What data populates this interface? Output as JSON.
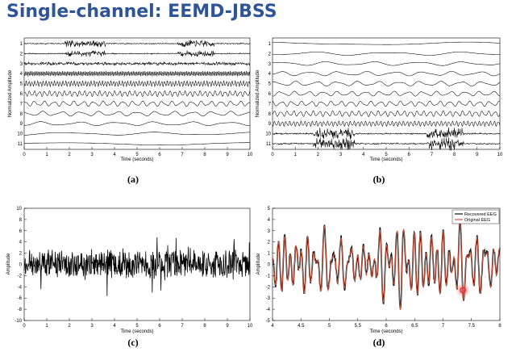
{
  "slide": {
    "title": "Single-channel: EEMD-JBSS"
  },
  "chart_data": [
    {
      "id": "a",
      "type": "line",
      "caption": "(a)",
      "xlabel": "Time (seconds)",
      "ylabel": "Normalized Amplitude",
      "xlim": [
        0,
        10
      ],
      "x_ticks": [
        "0",
        "1",
        "2",
        "3",
        "4",
        "5",
        "6",
        "7",
        "8",
        "9",
        "10"
      ],
      "channels": [
        "1",
        "2",
        "3",
        "4",
        "5",
        "6",
        "7",
        "8",
        "9",
        "10",
        "11"
      ],
      "grid": false,
      "series_desc": [
        {
          "channel": "1",
          "freq_hz": 38,
          "amp": 0.15,
          "bursts": [
            [
              1.8,
              3.6
            ],
            [
              6.8,
              8.4
            ]
          ],
          "burst_amp": 0.9
        },
        {
          "channel": "2",
          "freq_hz": 30,
          "amp": 0.15,
          "bursts": [
            [
              1.8,
              3.6
            ],
            [
              6.8,
              8.4
            ]
          ],
          "burst_amp": 0.8
        },
        {
          "channel": "3",
          "freq_hz": 22,
          "amp": 0.45
        },
        {
          "channel": "4",
          "freq_hz": 14,
          "amp": 0.6
        },
        {
          "channel": "5",
          "freq_hz": 8,
          "amp": 0.65
        },
        {
          "channel": "6",
          "freq_hz": 4.5,
          "amp": 0.65
        },
        {
          "channel": "7",
          "freq_hz": 2.3,
          "amp": 0.6
        },
        {
          "channel": "8",
          "freq_hz": 1.2,
          "amp": 0.55
        },
        {
          "channel": "9",
          "freq_hz": 0.6,
          "amp": 0.45
        },
        {
          "channel": "10",
          "freq_hz": 0.25,
          "amp": 0.35
        },
        {
          "channel": "11",
          "freq_hz": 0.1,
          "amp": 0.3
        }
      ]
    },
    {
      "id": "b",
      "type": "line",
      "caption": "(b)",
      "xlabel": "Time (seconds)",
      "ylabel": "Normalized Amplitude",
      "xlim": [
        0,
        10
      ],
      "x_ticks": [
        "0",
        "1",
        "2",
        "3",
        "4",
        "5",
        "6",
        "7",
        "8",
        "9",
        "10"
      ],
      "channels": [
        "1",
        "2",
        "3",
        "4",
        "5",
        "6",
        "7",
        "8",
        "9",
        "10",
        "11"
      ],
      "grid": false,
      "series_desc": [
        {
          "channel": "1",
          "freq_hz": 0.12,
          "amp": 0.35
        },
        {
          "channel": "2",
          "freq_hz": 0.3,
          "amp": 0.4
        },
        {
          "channel": "3",
          "freq_hz": 0.5,
          "amp": 0.45
        },
        {
          "channel": "4",
          "freq_hz": 0.8,
          "amp": 0.5
        },
        {
          "channel": "5",
          "freq_hz": 1.1,
          "amp": 0.55
        },
        {
          "channel": "6",
          "freq_hz": 1.6,
          "amp": 0.55
        },
        {
          "channel": "7",
          "freq_hz": 2.3,
          "amp": 0.6
        },
        {
          "channel": "8",
          "freq_hz": 3.5,
          "amp": 0.65
        },
        {
          "channel": "9",
          "freq_hz": 6,
          "amp": 0.6
        },
        {
          "channel": "10",
          "freq_hz": 24,
          "amp": 0.2,
          "bursts": [
            [
              1.8,
              3.6
            ],
            [
              6.8,
              8.4
            ]
          ],
          "burst_amp": 1.4
        },
        {
          "channel": "11",
          "freq_hz": 40,
          "amp": 0.2,
          "bursts": [
            [
              1.8,
              3.6
            ],
            [
              6.8,
              8.4
            ]
          ],
          "burst_amp": 1.6
        }
      ]
    },
    {
      "id": "c",
      "type": "line",
      "caption": "(c)",
      "xlabel": "Time (seconds)",
      "ylabel": "Amplitude",
      "xlim": [
        0,
        10
      ],
      "ylim": [
        -10,
        10
      ],
      "x_ticks": [
        "0",
        "1",
        "2",
        "3",
        "4",
        "5",
        "6",
        "7",
        "8",
        "9",
        "10"
      ],
      "y_ticks": [
        "10",
        "8",
        "6",
        "4",
        "2",
        "0",
        "-2",
        "-4",
        "-6",
        "-8",
        "-10"
      ],
      "grid": false,
      "series_desc": [
        {
          "noise_amp": 2.2,
          "spike_amp": 4
        }
      ]
    },
    {
      "id": "d",
      "type": "line",
      "caption": "(d)",
      "xlabel": "Time (seconds)",
      "ylabel": "Amplitude",
      "xlim": [
        4,
        8
      ],
      "ylim": [
        -5,
        5
      ],
      "x_ticks": [
        "4",
        "4.5",
        "5",
        "5.5",
        "6",
        "6.5",
        "7",
        "7.5",
        "8"
      ],
      "y_ticks": [
        "5",
        "4",
        "3",
        "2",
        "1",
        "0",
        "-1",
        "-2",
        "-3",
        "-4",
        "-5"
      ],
      "grid": false,
      "legend": {
        "position": "top-right",
        "entries": [
          {
            "label": "Recovered EEG",
            "color": "#111111"
          },
          {
            "label": "Original EEG",
            "color": "#d2553c"
          }
        ]
      },
      "colors": {
        "recovered": "#111111",
        "original": "#d2553c",
        "cursor": "#e53030"
      },
      "cursor_marker": {
        "x": 7.35,
        "y": -2.3
      }
    }
  ]
}
